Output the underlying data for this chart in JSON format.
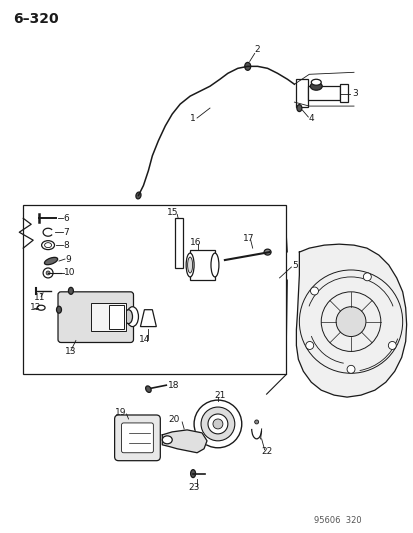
{
  "title": "6–320",
  "background_color": "#ffffff",
  "page_num": "95606  320",
  "figsize": [
    4.14,
    5.33
  ],
  "dpi": 100,
  "line_color": "#1a1a1a"
}
